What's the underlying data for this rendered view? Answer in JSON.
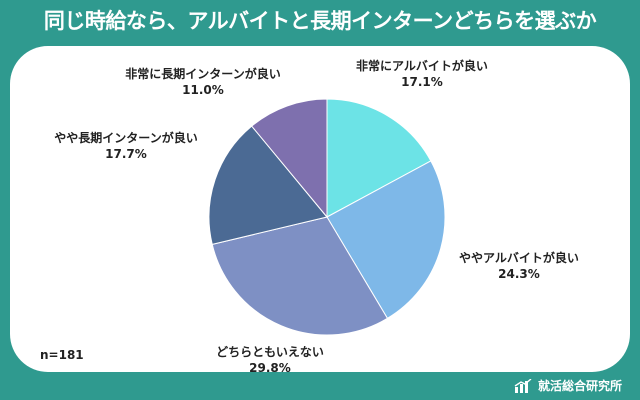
{
  "title": "同じ時給なら、アルバイトと長期インターンどちらを選ぶか",
  "sample_size": "n=181",
  "brand": "就活総合研究所",
  "brand_icon": "bar-chart-icon",
  "colors": {
    "background": "#2f9a8f",
    "panel": "#ffffff"
  },
  "chart_data": {
    "type": "pie",
    "title": "同じ時給なら、アルバイトと長期インターンどちらを選ぶか",
    "slices": [
      {
        "label": "非常にアルバイトが良い",
        "value": 17.1,
        "display": "17.1%",
        "color": "#6ce3e6"
      },
      {
        "label": "ややアルバイトが良い",
        "value": 24.3,
        "display": "24.3%",
        "color": "#7eb8e8"
      },
      {
        "label": "どちらともいえない",
        "value": 29.8,
        "display": "29.8%",
        "color": "#7e90c4"
      },
      {
        "label": "やや長期インターンが良い",
        "value": 17.7,
        "display": "17.7%",
        "color": "#4b6a94"
      },
      {
        "label": "非常に長期インターンが良い",
        "value": 11.0,
        "display": "11.0%",
        "color": "#7e70ae"
      }
    ],
    "start_angle": "12 o'clock",
    "direction": "clockwise"
  }
}
